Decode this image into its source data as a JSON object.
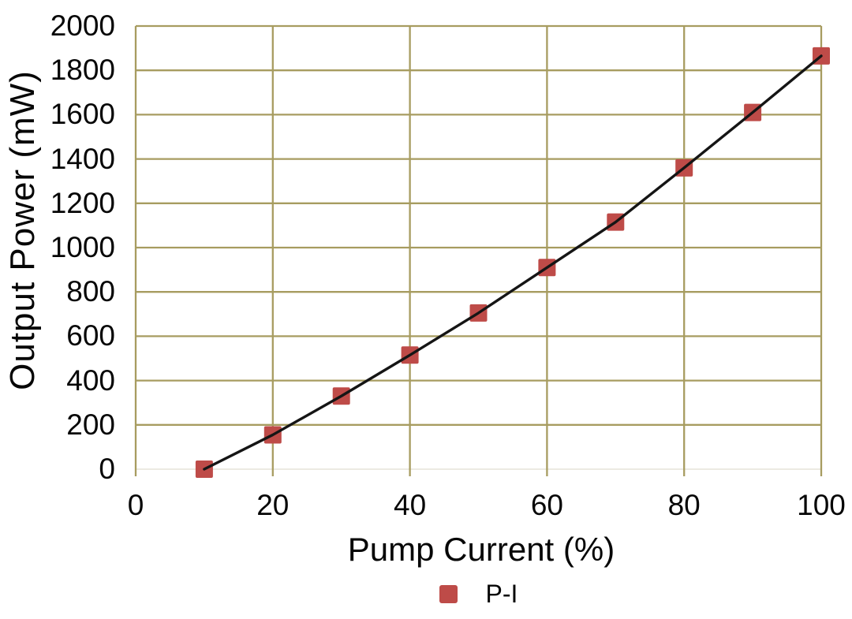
{
  "chart_data": {
    "type": "line",
    "title": "",
    "xlabel": "Pump Current (%)",
    "ylabel": "Output Power (mW)",
    "xlim": [
      0,
      100
    ],
    "ylim": [
      0,
      2000
    ],
    "x_ticks": [
      0,
      20,
      40,
      60,
      80,
      100
    ],
    "y_ticks": [
      0,
      200,
      400,
      600,
      800,
      1000,
      1200,
      1400,
      1600,
      1800,
      2000
    ],
    "grid": true,
    "legend_position": "bottom-center",
    "series": [
      {
        "name": "P-I",
        "marker": "square",
        "x": [
          10,
          20,
          30,
          40,
          50,
          60,
          70,
          80,
          90,
          100
        ],
        "y": [
          0,
          155,
          330,
          515,
          705,
          910,
          1115,
          1360,
          1610,
          1865
        ]
      }
    ],
    "colors": {
      "marker": "#be4b48",
      "line": "#151515",
      "grid": "#a79c60",
      "axis_baseline": "#eceae2",
      "text": "#060606",
      "background": "#ffffff"
    }
  }
}
